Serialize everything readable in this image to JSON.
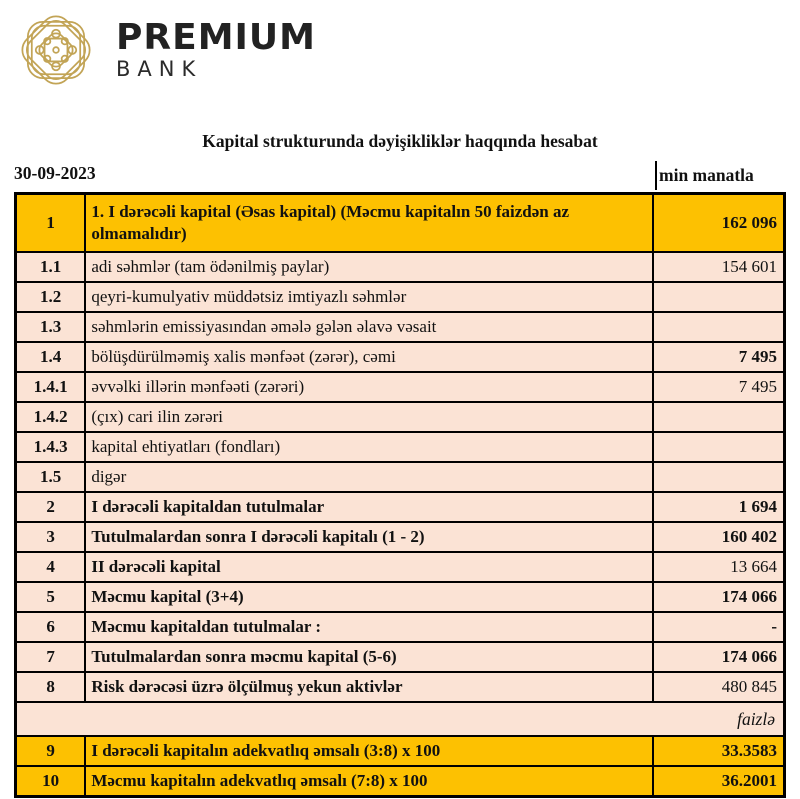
{
  "logo": {
    "brand_top": "PREMIUM",
    "brand_bottom": "BANK",
    "knot_icon": "ornamental-gold-knot"
  },
  "header": {
    "title": "Kapital strukturunda dəyişikliklər haqqında hesabat",
    "date": "30-09-2023",
    "unit": "min manatla"
  },
  "colors": {
    "highlight_orange": "#FDC101",
    "row_pink": "#FBE3D5",
    "logo_gold": "#C2A456",
    "border_black": "#000000",
    "text": "#111111"
  },
  "table": {
    "rows": [
      {
        "type": "data",
        "num": "1",
        "label": "1. I dərəcəli kapital (Əsas kapital) (Məcmu kapitalın 50 faizdən  az olmamalıdır)",
        "value": "162 096",
        "highlight": true,
        "bold_label": true,
        "bold_value": true,
        "tall": true
      },
      {
        "type": "data",
        "num": "1.1",
        "label": "adi səhmlər (tam ödənilmiş paylar)",
        "value": "154 601",
        "highlight": false,
        "bold_label": false,
        "bold_value": false
      },
      {
        "type": "data",
        "num": "1.2",
        "label": "qeyri-kumulyativ müddətsiz imtiyazlı səhmlər",
        "value": "",
        "highlight": false,
        "bold_label": false,
        "bold_value": false
      },
      {
        "type": "data",
        "num": "1.3",
        "label": "səhmlərin emissiyasından əmələ gələn  əlavə vəsait",
        "value": "",
        "highlight": false,
        "bold_label": false,
        "bold_value": false
      },
      {
        "type": "data",
        "num": "1.4",
        "label": "bölüşdürülməmiş xalis mənfəət (zərər), cəmi",
        "value": "7 495",
        "highlight": false,
        "bold_label": false,
        "bold_value": true
      },
      {
        "type": "data",
        "num": "1.4.1",
        "label": "əvvəlki illərin mənfəəti (zərəri)",
        "value": "7 495",
        "highlight": false,
        "bold_label": false,
        "bold_value": false
      },
      {
        "type": "data",
        "num": "1.4.2",
        "label": "(çıx) cari ilin zərəri",
        "value": "",
        "highlight": false,
        "bold_label": false,
        "bold_value": false
      },
      {
        "type": "data",
        "num": "1.4.3",
        "label": "kapital ehtiyatları (fondları)",
        "value": "",
        "highlight": false,
        "bold_label": false,
        "bold_value": false
      },
      {
        "type": "data",
        "num": "1.5",
        "label": "digər",
        "value": "",
        "highlight": false,
        "bold_label": false,
        "bold_value": false
      },
      {
        "type": "data",
        "num": "2",
        "label": "I dərəcəli kapitaldan  tutulmalar",
        "value": "1 694",
        "highlight": false,
        "bold_label": true,
        "bold_value": true
      },
      {
        "type": "data",
        "num": "3",
        "label": "Tutulmalardan  sonra I dərəcəli kapitalı (1 - 2)",
        "value": "160 402",
        "highlight": false,
        "bold_label": true,
        "bold_value": true
      },
      {
        "type": "data",
        "num": "4",
        "label": "II dərəcəli  kapital",
        "value": "13 664",
        "highlight": false,
        "bold_label": true,
        "bold_value": false
      },
      {
        "type": "data",
        "num": "5",
        "label": "Məcmu kapital (3+4)",
        "value": "174 066",
        "highlight": false,
        "bold_label": true,
        "bold_value": true
      },
      {
        "type": "data",
        "num": "6",
        "label": "Məcmu kapitaldan tutulmalar :",
        "value": "-",
        "highlight": false,
        "bold_label": true,
        "bold_value": true
      },
      {
        "type": "data",
        "num": "7",
        "label": "Tutulmalardan sonra məcmu kapital (5-6)",
        "value": "174 066",
        "highlight": false,
        "bold_label": true,
        "bold_value": true
      },
      {
        "type": "data",
        "num": "8",
        "label": "Risk dərəcəsi üzrə ölçülmuş  yekun aktivlər",
        "value": "480 845",
        "highlight": false,
        "bold_label": true,
        "bold_value": false
      },
      {
        "type": "unit",
        "label": "faizlə"
      },
      {
        "type": "data",
        "num": "9",
        "label": "I dərəcəli  kapitalın  adekvatlıq əmsalı (3:8) x 100",
        "value": "33.3583",
        "highlight": true,
        "bold_label": true,
        "bold_value": true
      },
      {
        "type": "data",
        "num": "10",
        "label": "Məcmu kapitalın  adekvatlıq  əmsalı (7:8) x 100",
        "value": "36.2001",
        "highlight": true,
        "bold_label": true,
        "bold_value": true
      }
    ]
  }
}
